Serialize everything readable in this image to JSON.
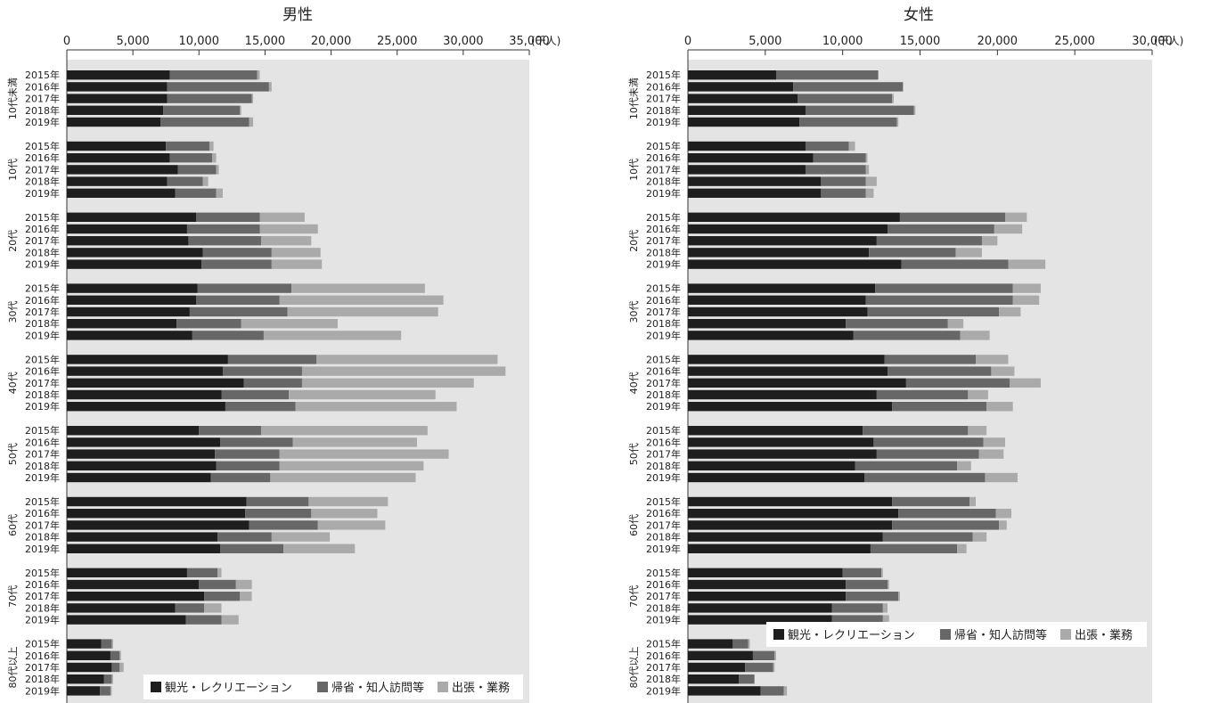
{
  "chart_data": [
    {
      "type": "bar",
      "orientation": "horizontal",
      "stacked": true,
      "title": "男性",
      "unit": "(千人)",
      "xlim": [
        0,
        35000
      ],
      "xticks": [
        "0",
        "5,000",
        "10,000",
        "15,000",
        "20,000",
        "25,000",
        "30,000",
        "35,000"
      ],
      "grid": false,
      "legend_position": "bottom-right",
      "years": [
        "2015年",
        "2016年",
        "2017年",
        "2018年",
        "2019年"
      ],
      "groups": [
        {
          "name": "10代未満",
          "values": [
            [
              7800,
              6600,
              200
            ],
            [
              7600,
              7700,
              200
            ],
            [
              7600,
              6400,
              100
            ],
            [
              7300,
              5800,
              100
            ],
            [
              7100,
              6700,
              300
            ]
          ]
        },
        {
          "name": "10代",
          "values": [
            [
              7500,
              3300,
              300
            ],
            [
              7800,
              3200,
              300
            ],
            [
              8400,
              2900,
              200
            ],
            [
              7600,
              2700,
              400
            ],
            [
              8200,
              3100,
              500
            ]
          ]
        },
        {
          "name": "20代",
          "values": [
            [
              9800,
              4800,
              3400
            ],
            [
              9100,
              5500,
              4400
            ],
            [
              9200,
              5500,
              3800
            ],
            [
              10300,
              5200,
              3700
            ],
            [
              10200,
              5300,
              3800
            ]
          ]
        },
        {
          "name": "30代",
          "values": [
            [
              9900,
              7100,
              10100
            ],
            [
              9800,
              6300,
              12400
            ],
            [
              9300,
              7400,
              11400
            ],
            [
              8300,
              4900,
              7300
            ],
            [
              9500,
              5400,
              10400
            ]
          ]
        },
        {
          "name": "40代",
          "values": [
            [
              12200,
              6700,
              13700
            ],
            [
              11800,
              6000,
              15400
            ],
            [
              13400,
              4400,
              13000
            ],
            [
              11700,
              5100,
              11100
            ],
            [
              12000,
              5300,
              12200
            ]
          ]
        },
        {
          "name": "50代",
          "values": [
            [
              10000,
              4700,
              12600
            ],
            [
              11600,
              5500,
              9400
            ],
            [
              11200,
              4900,
              12800
            ],
            [
              11300,
              4800,
              10900
            ],
            [
              10900,
              4500,
              11000
            ]
          ]
        },
        {
          "name": "60代",
          "values": [
            [
              13600,
              4700,
              6000
            ],
            [
              13500,
              5000,
              5000
            ],
            [
              13800,
              5200,
              5100
            ],
            [
              11400,
              4100,
              4400
            ],
            [
              11600,
              4800,
              5400
            ]
          ]
        },
        {
          "name": "70代",
          "values": [
            [
              9100,
              2300,
              300
            ],
            [
              10000,
              2800,
              1200
            ],
            [
              10400,
              2700,
              900
            ],
            [
              8200,
              2200,
              1300
            ],
            [
              9000,
              2700,
              1300
            ]
          ]
        },
        {
          "name": "80代以上",
          "values": [
            [
              2600,
              800,
              100
            ],
            [
              3300,
              700,
              100
            ],
            [
              3400,
              600,
              300
            ],
            [
              2800,
              600,
              100
            ],
            [
              2500,
              800,
              100
            ]
          ]
        }
      ]
    },
    {
      "type": "bar",
      "orientation": "horizontal",
      "stacked": true,
      "title": "女性",
      "unit": "(千人)",
      "xlim": [
        0,
        30000
      ],
      "xticks": [
        "0",
        "5,000",
        "10,000",
        "15,000",
        "20,000",
        "25,000",
        "30,000"
      ],
      "grid": false,
      "legend_position": "bottom-right",
      "years": [
        "2015年",
        "2016年",
        "2017年",
        "2018年",
        "2019年"
      ],
      "groups": [
        {
          "name": "10代未満",
          "values": [
            [
              5700,
              6600,
              0
            ],
            [
              6800,
              7100,
              0
            ],
            [
              7100,
              6100,
              100
            ],
            [
              7600,
              7000,
              100
            ],
            [
              7200,
              6300,
              100
            ]
          ]
        },
        {
          "name": "10代",
          "values": [
            [
              7600,
              2800,
              400
            ],
            [
              8100,
              3400,
              100
            ],
            [
              7600,
              3900,
              200
            ],
            [
              8600,
              2900,
              700
            ],
            [
              8600,
              2900,
              500
            ]
          ]
        },
        {
          "name": "20代",
          "values": [
            [
              13700,
              6800,
              1400
            ],
            [
              12900,
              6900,
              1800
            ],
            [
              12200,
              6800,
              1000
            ],
            [
              11700,
              5600,
              1700
            ],
            [
              13800,
              6900,
              2400
            ]
          ]
        },
        {
          "name": "30代",
          "values": [
            [
              12100,
              8900,
              1800
            ],
            [
              11500,
              9500,
              1700
            ],
            [
              11600,
              8500,
              1400
            ],
            [
              10200,
              6600,
              1000
            ],
            [
              10700,
              6900,
              1900
            ]
          ]
        },
        {
          "name": "40代",
          "values": [
            [
              12700,
              5900,
              2100
            ],
            [
              12900,
              6700,
              1500
            ],
            [
              14100,
              6700,
              2000
            ],
            [
              12200,
              5900,
              1300
            ],
            [
              13200,
              6100,
              1700
            ]
          ]
        },
        {
          "name": "50代",
          "values": [
            [
              11300,
              6800,
              1200
            ],
            [
              12000,
              7100,
              1400
            ],
            [
              12200,
              6600,
              1600
            ],
            [
              10800,
              6600,
              900
            ],
            [
              11400,
              7800,
              2100
            ]
          ]
        },
        {
          "name": "60代",
          "values": [
            [
              13200,
              5000,
              400
            ],
            [
              13600,
              6300,
              1000
            ],
            [
              13200,
              6900,
              500
            ],
            [
              12600,
              5800,
              900
            ],
            [
              11800,
              5600,
              600
            ]
          ]
        },
        {
          "name": "70代",
          "values": [
            [
              10000,
              2500,
              100
            ],
            [
              10200,
              2700,
              100
            ],
            [
              10200,
              3400,
              100
            ],
            [
              9300,
              3300,
              300
            ],
            [
              9300,
              3300,
              400
            ]
          ]
        },
        {
          "name": "80代以上",
          "values": [
            [
              2900,
              1000,
              100
            ],
            [
              4200,
              1400,
              100
            ],
            [
              3700,
              1800,
              100
            ],
            [
              3300,
              1000,
              0
            ],
            [
              4700,
              1500,
              200
            ]
          ]
        }
      ]
    }
  ],
  "legend": {
    "items": [
      {
        "label": "観光・レクリエーション",
        "color": "#1e1e1e"
      },
      {
        "label": "帰省・知人訪問等",
        "color": "#676767"
      },
      {
        "label": "出張・業務",
        "color": "#aaaaaa"
      }
    ]
  },
  "colors": {
    "plot_background": "#e4e4e4",
    "series": [
      "#1e1e1e",
      "#676767",
      "#aaaaaa"
    ]
  }
}
